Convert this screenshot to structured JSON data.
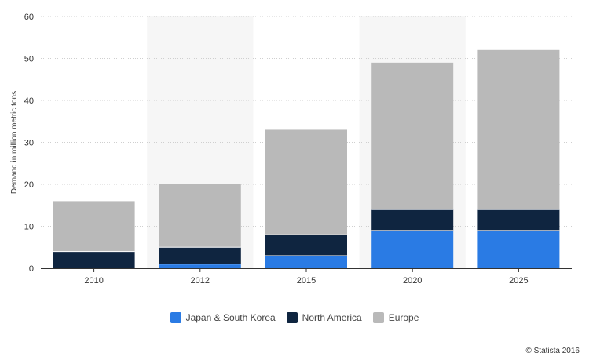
{
  "chart_data": {
    "type": "bar",
    "stacked": true,
    "categories": [
      "2010",
      "2012",
      "2015",
      "2020",
      "2025"
    ],
    "series": [
      {
        "name": "Japan & South Korea",
        "color": "#2a7be4",
        "values": [
          0,
          1,
          3,
          9,
          9
        ]
      },
      {
        "name": "North America",
        "color": "#0f2540",
        "values": [
          4,
          4,
          5,
          5,
          5
        ]
      },
      {
        "name": "Europe",
        "color": "#b9b9b9",
        "values": [
          12,
          15,
          25,
          35,
          38
        ]
      }
    ],
    "ylabel": "Demand in million metric tons",
    "ylim": [
      0,
      60
    ],
    "yticks": [
      0,
      10,
      20,
      30,
      40,
      50,
      60
    ],
    "grid": true,
    "legend_position": "bottom",
    "highlighted_bands": [
      "2012",
      "2020"
    ]
  },
  "footer": {
    "credit": "© Statista 2016"
  }
}
